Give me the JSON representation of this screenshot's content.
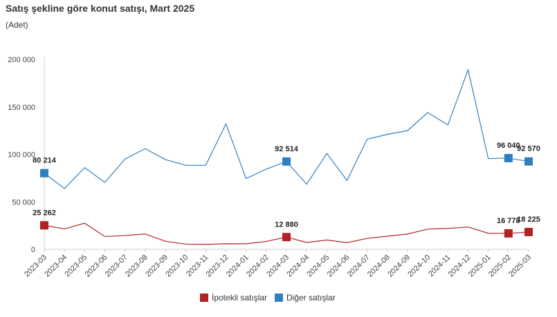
{
  "chart_data": {
    "type": "line",
    "title": "Satış şekline göre konut satışı, Mart 2025",
    "subtitle": "(Adet)",
    "xlabel": "",
    "ylabel": "",
    "ylim": [
      0,
      200000
    ],
    "yticks": [
      0,
      50000,
      100000,
      150000,
      200000
    ],
    "ytick_labels": [
      "0",
      "50 000",
      "100 000",
      "150 000",
      "200 000"
    ],
    "grid": false,
    "legend": "bottom",
    "categories": [
      "2023-03",
      "2023-04",
      "2023-05",
      "2023-06",
      "2023-07",
      "2023-08",
      "2023-09",
      "2023-10",
      "2023-11",
      "2023-12",
      "2024-01",
      "2024-02",
      "2024-03",
      "2024-04",
      "2024-05",
      "2024-06",
      "2024-07",
      "2024-08",
      "2024-09",
      "2024-10",
      "2024-11",
      "2024-12",
      "2025-01",
      "2025-02",
      "2025-03"
    ],
    "series": [
      {
        "name": "İpotekli satışlar",
        "color": "#b22222",
        "values": [
          25262,
          21500,
          27500,
          13500,
          14500,
          16200,
          8500,
          5500,
          5200,
          5900,
          5800,
          8300,
          12880,
          7200,
          9800,
          7000,
          11500,
          13800,
          16100,
          21300,
          22000,
          23500,
          16900,
          16778,
          18225
        ],
        "labels": [
          {
            "index": 0,
            "text": "25 262"
          },
          {
            "index": 12,
            "text": "12 880"
          },
          {
            "index": 23,
            "text": "16 778"
          },
          {
            "index": 24,
            "text": "18 225"
          }
        ]
      },
      {
        "name": "Diğer satışlar",
        "color": "#2f80c1",
        "values": [
          80214,
          64000,
          86000,
          70500,
          95000,
          106000,
          94500,
          88500,
          88500,
          132000,
          74500,
          84500,
          92514,
          68500,
          101000,
          72500,
          116000,
          121000,
          125000,
          144000,
          131000,
          189000,
          95500,
          96040,
          92570
        ],
        "labels": [
          {
            "index": 0,
            "text": "80 214"
          },
          {
            "index": 12,
            "text": "92 514"
          },
          {
            "index": 23,
            "text": "96 040"
          },
          {
            "index": 24,
            "text": "92 570"
          }
        ]
      }
    ]
  }
}
